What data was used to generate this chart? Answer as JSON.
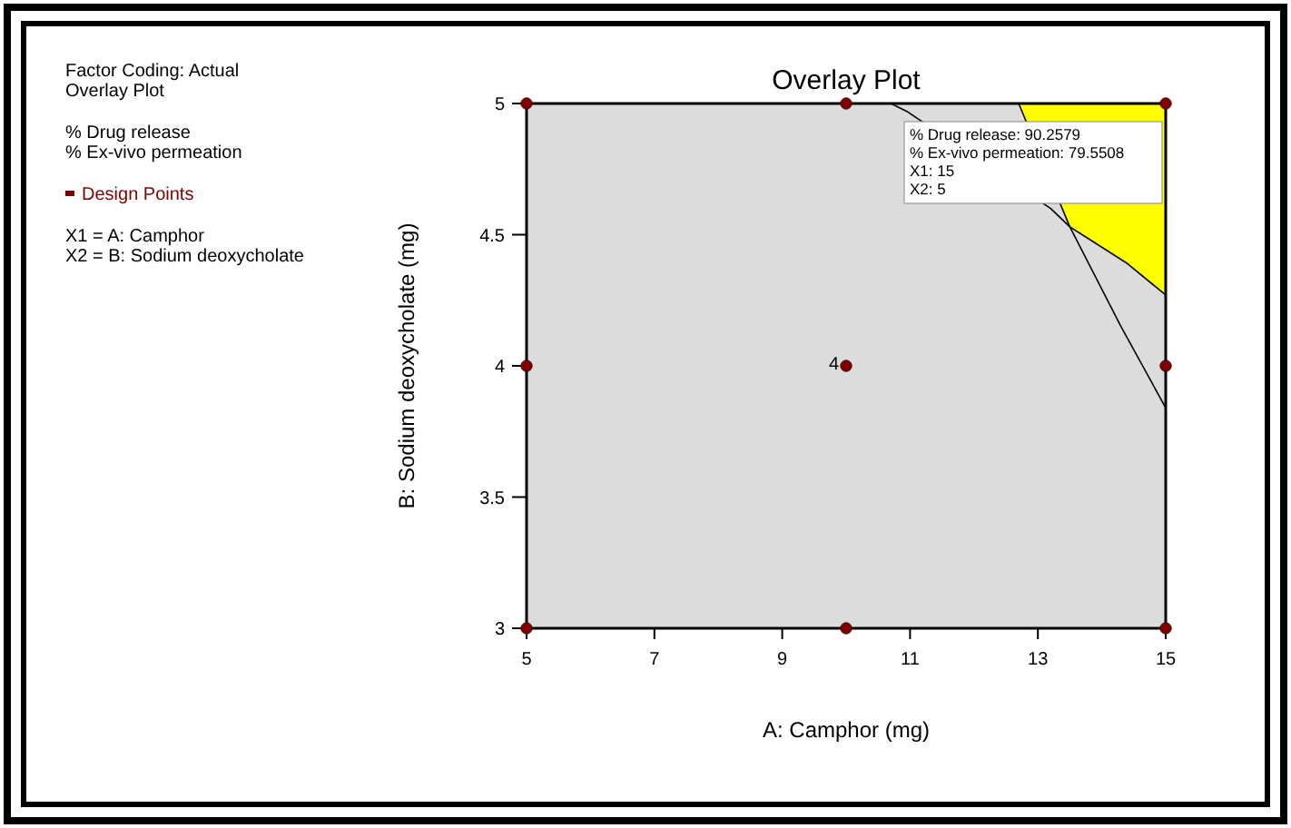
{
  "chart_data": {
    "type": "scatter",
    "title": "Overlay Plot",
    "xlabel": "A: Camphor (mg)",
    "ylabel": "B: Sodium deoxycholate (mg)",
    "xlim": [
      5,
      15
    ],
    "ylim": [
      3,
      5
    ],
    "xticks": [
      5,
      7,
      9,
      11,
      13,
      15
    ],
    "yticks": [
      3,
      3.5,
      4,
      4.5,
      5
    ],
    "grid": false,
    "legend": "left",
    "series": [
      {
        "type": "line",
        "color": "#000000",
        "x": [
          12.7,
          13.5,
          14.4,
          15
        ],
        "values": [
          5,
          4.53,
          4.39,
          4.27
        ],
        "lower": [
          5,
          4.53,
          4.39,
          4.27
        ],
        "upper": [
          5,
          5,
          5,
          5
        ]
      },
      {
        "type": "line",
        "color": "#000000",
        "x": [
          10.7,
          10.95,
          13.2,
          13.5,
          14.3,
          15
        ],
        "values": [
          5,
          4.97,
          4.6,
          4.53,
          4.15,
          3.84
        ]
      },
      {
        "name": "Design Points",
        "color": "#800000",
        "marker": "circle",
        "x": [
          5,
          10,
          15,
          5,
          10,
          15,
          5,
          10,
          15
        ],
        "values": [
          5,
          5,
          5,
          4,
          4,
          4,
          3,
          3,
          3
        ]
      }
    ],
    "annotations": [
      "Factor Coding: Actual",
      "Overlay Plot",
      "% Drug release",
      "% Ex-vivo permeation",
      "X1 = A: Camphor",
      "X2 = B: Sodium deoxycholate",
      {
        "text": "4",
        "x": 10,
        "y": 4
      },
      "% Drug release: 90.2579",
      "% Ex-vivo permeation: 79.5508",
      "X1: 15",
      "X2: 5"
    ]
  }
}
